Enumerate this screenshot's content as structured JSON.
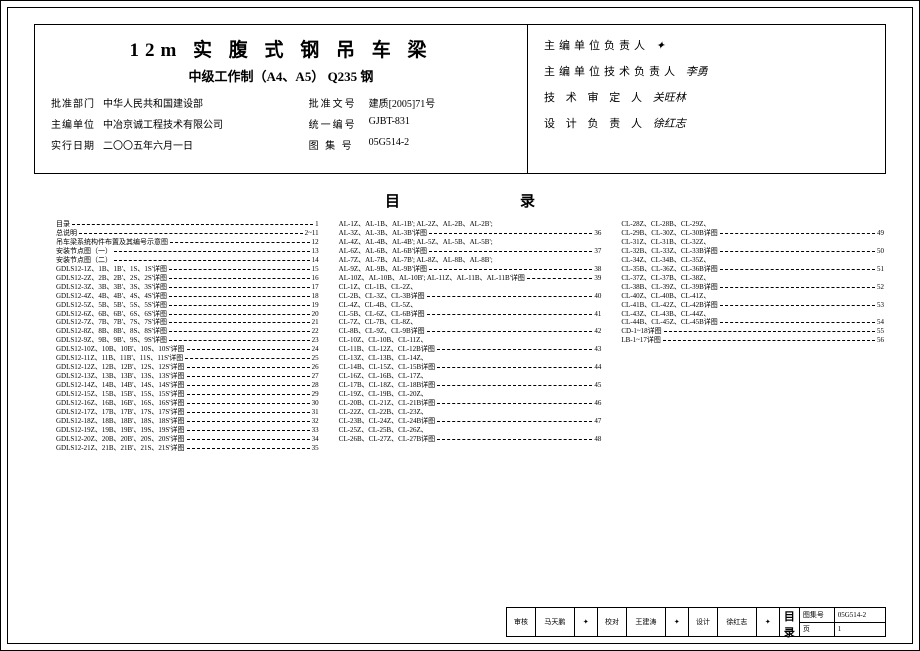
{
  "title1": "12m 实 腹 式 钢 吊 车 梁",
  "title2": "中级工作制（A4、A5）  Q235 钢",
  "meta": [
    {
      "l_label": "批准部门",
      "l_val": "中华人民共和国建设部",
      "r_label": "批准文号",
      "r_val": "建质[2005]71号"
    },
    {
      "l_label": "主编单位",
      "l_val": "中冶京诚工程技术有限公司",
      "r_label": "统一编号",
      "r_val": "GJBT-831"
    },
    {
      "l_label": "实行日期",
      "l_val": "二〇〇五年六月一日",
      "r_label": "图 集 号",
      "r_val": "05G514-2"
    }
  ],
  "sigs": [
    {
      "label": "主编单位负责人",
      "sig": "✦"
    },
    {
      "label": "主编单位技术负责人",
      "sig": "李勇"
    },
    {
      "label": "技 术 审 定 人",
      "sig": "关旺林"
    },
    {
      "label": "设 计 负 责 人",
      "sig": "徐红志"
    }
  ],
  "toc_title": "目录",
  "toc_cols": [
    [
      {
        "t": "目录",
        "p": "1"
      },
      {
        "t": "总说明",
        "p": "2~11"
      },
      {
        "t": "吊车梁系统构件布置及其编号示意图",
        "p": "12"
      },
      {
        "t": "安装节点图（一）",
        "p": "13"
      },
      {
        "t": "安装节点图（二）",
        "p": "14"
      },
      {
        "t": "GDLS12-1Z、1B、1B'、1S、1S'详图",
        "p": "15"
      },
      {
        "t": "GDLS12-2Z、2B、2B'、2S、2S'详图",
        "p": "16"
      },
      {
        "t": "GDLS12-3Z、3B、3B'、3S、3S'详图",
        "p": "17"
      },
      {
        "t": "GDLS12-4Z、4B、4B'、4S、4S'详图",
        "p": "18"
      },
      {
        "t": "GDLS12-5Z、5B、5B'、5S、5S'详图",
        "p": "19"
      },
      {
        "t": "GDLS12-6Z、6B、6B'、6S、6S'详图",
        "p": "20"
      },
      {
        "t": "GDLS12-7Z、7B、7B'、7S、7S'详图",
        "p": "21"
      },
      {
        "t": "GDLS12-8Z、8B、8B'、8S、8S'详图",
        "p": "22"
      },
      {
        "t": "GDLS12-9Z、9B、9B'、9S、9S'详图",
        "p": "23"
      },
      {
        "t": "GDLS12-10Z、10B、10B'、10S、10S'详图",
        "p": "24"
      },
      {
        "t": "GDLS12-11Z、11B、11B'、11S、11S'详图",
        "p": "25"
      },
      {
        "t": "GDLS12-12Z、12B、12B'、12S、12S'详图",
        "p": "26"
      },
      {
        "t": "GDLS12-13Z、13B、13B'、13S、13S'详图",
        "p": "27"
      },
      {
        "t": "GDLS12-14Z、14B、14B'、14S、14S'详图",
        "p": "28"
      },
      {
        "t": "GDLS12-15Z、15B、15B'、15S、15S'详图",
        "p": "29"
      },
      {
        "t": "GDLS12-16Z、16B、16B'、16S、16S'详图",
        "p": "30"
      },
      {
        "t": "GDLS12-17Z、17B、17B'、17S、17S'详图",
        "p": "31"
      },
      {
        "t": "GDLS12-18Z、18B、18B'、18S、18S'详图",
        "p": "32"
      },
      {
        "t": "GDLS12-19Z、19B、19B'、19S、19S'详图",
        "p": "33"
      },
      {
        "t": "GDLS12-20Z、20B、20B'、20S、20S'详图",
        "p": "34"
      },
      {
        "t": "GDLS12-21Z、21B、21B'、21S、21S'详图",
        "p": "35"
      }
    ],
    [
      {
        "t": "AL-1Z、AL-1B、AL-1B'; AL-2Z、AL-2B、AL-2B';",
        "p": ""
      },
      {
        "t": "AL-3Z、AL-3B、AL-3B'详图",
        "p": "36"
      },
      {
        "t": "AL-4Z、AL-4B、AL-4B'; AL-5Z、AL-5B、AL-5B';",
        "p": ""
      },
      {
        "t": "AL-6Z、AL-6B、AL-6B'详图",
        "p": "37"
      },
      {
        "t": "AL-7Z、AL-7B、AL-7B'; AL-8Z、AL-8B、AL-8B';",
        "p": ""
      },
      {
        "t": "AL-9Z、AL-9B、AL-9B'详图",
        "p": "38"
      },
      {
        "t": "AL-10Z、AL-10B、AL-10B'; AL-11Z、AL-11B、AL-11B'详图",
        "p": "39"
      },
      {
        "t": "CL-1Z、CL-1B、CL-2Z、",
        "p": ""
      },
      {
        "t": "CL-2B、CL-3Z、CL-3B详图",
        "p": "40"
      },
      {
        "t": "CL-4Z、CL-4B、CL-5Z、",
        "p": ""
      },
      {
        "t": "CL-5B、CL-6Z、CL-6B详图",
        "p": "41"
      },
      {
        "t": "CL-7Z、CL-7B、CL-8Z、",
        "p": ""
      },
      {
        "t": "CL-8B、CL-9Z、CL-9B详图",
        "p": "42"
      },
      {
        "t": "CL-10Z、CL-10B、CL-11Z、",
        "p": ""
      },
      {
        "t": "CL-11B、CL-12Z、CL-12B详图",
        "p": "43"
      },
      {
        "t": "CL-13Z、CL-13B、CL-14Z、",
        "p": ""
      },
      {
        "t": "CL-14B、CL-15Z、CL-15B详图",
        "p": "44"
      },
      {
        "t": "CL-16Z、CL-16B、CL-17Z、",
        "p": ""
      },
      {
        "t": "CL-17B、CL-18Z、CL-18B详图",
        "p": "45"
      },
      {
        "t": "CL-19Z、CL-19B、CL-20Z、",
        "p": ""
      },
      {
        "t": "CL-20B、CL-21Z、CL-21B详图",
        "p": "46"
      },
      {
        "t": "CL-22Z、CL-22B、CL-23Z、",
        "p": ""
      },
      {
        "t": "CL-23B、CL-24Z、CL-24B详图",
        "p": "47"
      },
      {
        "t": "CL-25Z、CL-25B、CL-26Z、",
        "p": ""
      },
      {
        "t": "CL-26B、CL-27Z、CL-27B详图",
        "p": "48"
      }
    ],
    [
      {
        "t": "CL-28Z、CL-28B、CL-29Z、",
        "p": ""
      },
      {
        "t": "CL-29B、CL-30Z、CL-30B详图",
        "p": "49"
      },
      {
        "t": "CL-31Z、CL-31B、CL-32Z、",
        "p": ""
      },
      {
        "t": "CL-32B、CL-33Z、CL-33B详图",
        "p": "50"
      },
      {
        "t": "CL-34Z、CL-34B、CL-35Z、",
        "p": ""
      },
      {
        "t": "CL-35B、CL-36Z、CL-36B详图",
        "p": "51"
      },
      {
        "t": "CL-37Z、CL-37B、CL-38Z、",
        "p": ""
      },
      {
        "t": "CL-38B、CL-39Z、CL-39B详图",
        "p": "52"
      },
      {
        "t": "CL-40Z、CL-40B、CL-41Z、",
        "p": ""
      },
      {
        "t": "CL-41B、CL-42Z、CL-42B详图",
        "p": "53"
      },
      {
        "t": "CL-43Z、CL-43B、CL-44Z、",
        "p": ""
      },
      {
        "t": "CL-44B、CL-45Z、CL-45B详图",
        "p": "54"
      },
      {
        "t": "CD-1~18详图",
        "p": "55"
      },
      {
        "t": "LB-1~17详图",
        "p": "56"
      }
    ]
  ],
  "footer": {
    "c1a": "审核",
    "c1b": "马天鹏",
    "c1c": "✦",
    "c2a": "校对",
    "c2b": "王建涛",
    "c2c": "✦",
    "c3a": "设计",
    "c3b": "徐红志",
    "c3c": "✦",
    "center": "目录",
    "r1a": "图集号",
    "r1b": "05G514-2",
    "r2a": "页",
    "r2b": "1"
  }
}
